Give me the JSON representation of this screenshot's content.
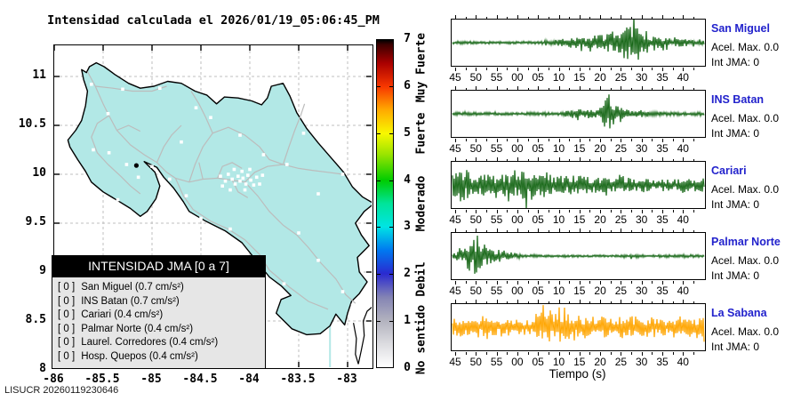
{
  "header": {
    "title": "Intensidad calculada el 2026/01/19_05:06:45_PM"
  },
  "footer": {
    "code": "LISUCR 20260119230646"
  },
  "map": {
    "x_tick_labels": [
      "-86",
      "-85.5",
      "-85",
      "-84.5",
      "-84",
      "-83.5",
      "-83"
    ],
    "y_tick_labels": [
      "11",
      "10.5",
      "10",
      "9.5",
      "9",
      "8.5",
      "8"
    ],
    "land_color": "#b2e8e6",
    "road_color": "#bcbcbc",
    "grid_color": "#bfbfbf",
    "legend": {
      "header": "INTENSIDAD JMA [0 a 7]",
      "items": [
        {
          "badge": "[ 0 ]",
          "label": "San Miguel (0.7 cm/s²)"
        },
        {
          "badge": "[ 0 ]",
          "label": "INS Batan (0.7 cm/s²)"
        },
        {
          "badge": "[ 0 ]",
          "label": "Cariari (0.4 cm/s²)"
        },
        {
          "badge": "[ 0 ]",
          "label": "Palmar Norte (0.4 cm/s²)"
        },
        {
          "badge": "[ 0 ]",
          "label": "Laurel. Corredores (0.4 cm/s²)"
        },
        {
          "badge": "[ 0 ]",
          "label": "Hosp. Quepos (0.4 cm/s²)"
        }
      ]
    }
  },
  "colorbar": {
    "tick_labels": [
      "0",
      "1",
      "2",
      "3",
      "4",
      "5",
      "6",
      "7"
    ],
    "range": [
      0,
      7
    ],
    "scale_labels": [
      {
        "text": "No sentido",
        "center": 0.6
      },
      {
        "text": "Debil",
        "center": 1.9
      },
      {
        "text": "Moderado",
        "center": 3.5
      },
      {
        "text": "Fuerte",
        "center": 5.0
      },
      {
        "text": "Muy Fuerte",
        "center": 6.4
      }
    ],
    "gradient_stops": [
      {
        "v": 0.0,
        "c": "#ffffff"
      },
      {
        "v": 0.5,
        "c": "#dcdce0"
      },
      {
        "v": 1.0,
        "c": "#b2b2be"
      },
      {
        "v": 1.5,
        "c": "#8484b4"
      },
      {
        "v": 2.0,
        "c": "#2a2ad0"
      },
      {
        "v": 2.5,
        "c": "#0078f0"
      },
      {
        "v": 3.0,
        "c": "#00e4e4"
      },
      {
        "v": 3.5,
        "c": "#00e49a"
      },
      {
        "v": 4.0,
        "c": "#00cc00"
      },
      {
        "v": 4.55,
        "c": "#9ae400"
      },
      {
        "v": 5.0,
        "c": "#f8f800"
      },
      {
        "v": 5.5,
        "c": "#ffaa00"
      },
      {
        "v": 6.0,
        "c": "#f83800"
      },
      {
        "v": 6.5,
        "c": "#aa0000"
      },
      {
        "v": 6.9,
        "c": "#3c0000"
      },
      {
        "v": 7.0,
        "c": "#000000"
      }
    ]
  },
  "chart_data": {
    "type": "line",
    "xlabel": "Tiempo (s)",
    "x_tick_labels": [
      "45",
      "50",
      "55",
      "00",
      "05",
      "10",
      "15",
      "20",
      "25",
      "30",
      "35",
      "40"
    ],
    "ylim_normalized": [
      -1,
      1
    ],
    "traces": [
      {
        "name": "San Miguel",
        "color": "#186818",
        "acel_max_text": "Acel. Max. 0.0",
        "int_jma_text": "Int JMA: 0",
        "amplitude_envelope": [
          0.05,
          0.05,
          0.05,
          0.04,
          0.04,
          0.04,
          0.04,
          0.05,
          0.05,
          0.08,
          0.12,
          0.2,
          0.28,
          0.32,
          0.38,
          0.42,
          0.5,
          0.95,
          0.55,
          0.38,
          0.28,
          0.22,
          0.16,
          0.12,
          0.09
        ]
      },
      {
        "name": "INS Batan",
        "color": "#186818",
        "acel_max_text": "Acel. Max. 0.0",
        "int_jma_text": "Int JMA: 0",
        "amplitude_envelope": [
          0.05,
          0.05,
          0.06,
          0.05,
          0.05,
          0.05,
          0.04,
          0.04,
          0.05,
          0.05,
          0.06,
          0.14,
          0.2,
          0.16,
          0.22,
          0.95,
          0.3,
          0.12,
          0.16,
          0.1,
          0.08,
          0.07,
          0.06,
          0.05,
          0.06
        ]
      },
      {
        "name": "Cariari",
        "color": "#186818",
        "acel_max_text": "Acel. Max. 0.0",
        "int_jma_text": "Int JMA: 0",
        "amplitude_envelope": [
          0.5,
          0.85,
          0.45,
          0.52,
          0.42,
          0.55,
          0.48,
          0.8,
          0.45,
          0.6,
          0.42,
          0.4,
          0.45,
          0.38,
          0.36,
          0.34,
          0.36,
          0.32,
          0.3,
          0.3,
          0.28,
          0.3,
          0.26,
          0.28,
          0.3
        ]
      },
      {
        "name": "Palmar Norte",
        "color": "#186818",
        "acel_max_text": "Acel. Max. 0.0",
        "int_jma_text": "Int JMA: 0",
        "amplitude_envelope": [
          0.12,
          0.3,
          0.95,
          0.45,
          0.3,
          0.25,
          0.12,
          0.06,
          0.04,
          0.03,
          0.03,
          0.03,
          0.03,
          0.03,
          0.04,
          0.03,
          0.03,
          0.08,
          0.05,
          0.04,
          0.05,
          0.04,
          0.06,
          0.05,
          0.04
        ]
      },
      {
        "name": "La Sabana",
        "color": "#ffa500",
        "acel_max_text": "Acel. Max. 0.0",
        "int_jma_text": "Int JMA: 0",
        "amplitude_envelope": [
          0.4,
          0.45,
          0.38,
          0.42,
          0.4,
          0.45,
          0.42,
          0.4,
          0.5,
          0.85,
          0.75,
          0.6,
          0.55,
          0.5,
          0.55,
          0.45,
          0.48,
          0.55,
          0.42,
          0.45,
          0.4,
          0.35,
          0.42,
          0.45,
          0.5
        ]
      }
    ]
  }
}
